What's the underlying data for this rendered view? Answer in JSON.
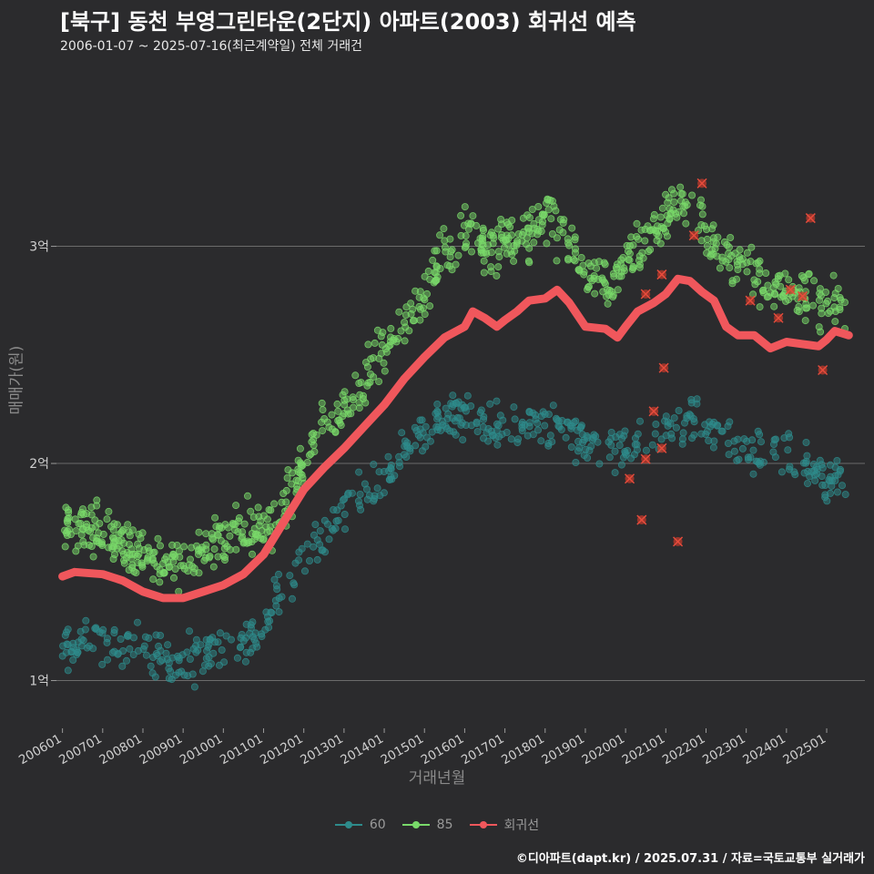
{
  "title": "[북구] 동천 부영그린타운(2단지) 아파트(2003) 회귀선 예측",
  "subtitle": "2006-01-07 ~ 2025-07-16(최근계약일) 전체 거래건",
  "caption": "©디아파트(dapt.kr) / 2025.07.31 / 자료=국토교통부 실거래가",
  "chart_data": {
    "type": "scatter",
    "xlabel": "거래년월",
    "ylabel": "매매가(원)",
    "x_ticks": [
      "200601",
      "200701",
      "200801",
      "200901",
      "201001",
      "201101",
      "201201",
      "201301",
      "201401",
      "201501",
      "201601",
      "201701",
      "201801",
      "201901",
      "202001",
      "202101",
      "202201",
      "202301",
      "202401",
      "202501"
    ],
    "y_ticks": [
      {
        "value": 1.0,
        "label": "1억"
      },
      {
        "value": 2.0,
        "label": "2억"
      },
      {
        "value": 3.0,
        "label": "3억"
      }
    ],
    "xlim": [
      2005.85,
      2025.95
    ],
    "ylim": [
      0.78,
      3.82
    ],
    "grid": true,
    "legend_position": "bottom",
    "colors": {
      "s60": "#2e8b8b",
      "s85": "#79d96a",
      "reg": "#f0575c",
      "outlier": "#c0392b"
    },
    "series": [
      {
        "name": "60",
        "trend": [
          [
            2006.0,
            1.17
          ],
          [
            2007.0,
            1.2
          ],
          [
            2008.0,
            1.17
          ],
          [
            2008.5,
            1.08
          ],
          [
            2009.0,
            1.1
          ],
          [
            2009.5,
            1.12
          ],
          [
            2010.0,
            1.14
          ],
          [
            2010.5,
            1.18
          ],
          [
            2011.0,
            1.27
          ],
          [
            2011.5,
            1.42
          ],
          [
            2012.0,
            1.58
          ],
          [
            2012.5,
            1.68
          ],
          [
            2013.0,
            1.78
          ],
          [
            2013.5,
            1.87
          ],
          [
            2014.0,
            1.96
          ],
          [
            2014.5,
            2.05
          ],
          [
            2015.0,
            2.13
          ],
          [
            2015.5,
            2.22
          ],
          [
            2016.0,
            2.22
          ],
          [
            2016.5,
            2.18
          ],
          [
            2017.0,
            2.16
          ],
          [
            2017.5,
            2.18
          ],
          [
            2018.0,
            2.2
          ],
          [
            2018.5,
            2.18
          ],
          [
            2019.0,
            2.1
          ],
          [
            2019.5,
            2.05
          ],
          [
            2020.0,
            2.08
          ],
          [
            2020.5,
            2.12
          ],
          [
            2021.0,
            2.18
          ],
          [
            2021.5,
            2.22
          ],
          [
            2022.0,
            2.15
          ],
          [
            2022.5,
            2.1
          ],
          [
            2023.0,
            2.05
          ],
          [
            2023.5,
            2.08
          ],
          [
            2024.0,
            2.05
          ],
          [
            2024.5,
            2.0
          ],
          [
            2025.0,
            1.95
          ],
          [
            2025.5,
            1.9
          ]
        ],
        "spread": 0.09
      },
      {
        "name": "85",
        "trend": [
          [
            2006.0,
            1.72
          ],
          [
            2006.5,
            1.7
          ],
          [
            2007.0,
            1.67
          ],
          [
            2007.5,
            1.62
          ],
          [
            2008.0,
            1.58
          ],
          [
            2008.5,
            1.55
          ],
          [
            2009.0,
            1.52
          ],
          [
            2009.5,
            1.58
          ],
          [
            2010.0,
            1.65
          ],
          [
            2010.5,
            1.7
          ],
          [
            2011.0,
            1.7
          ],
          [
            2011.5,
            1.8
          ],
          [
            2012.0,
            2.02
          ],
          [
            2012.5,
            2.18
          ],
          [
            2013.0,
            2.25
          ],
          [
            2013.5,
            2.4
          ],
          [
            2014.0,
            2.55
          ],
          [
            2014.5,
            2.65
          ],
          [
            2015.0,
            2.75
          ],
          [
            2015.5,
            3.0
          ],
          [
            2016.0,
            3.05
          ],
          [
            2016.5,
            3.0
          ],
          [
            2017.0,
            3.02
          ],
          [
            2017.5,
            3.05
          ],
          [
            2018.0,
            3.12
          ],
          [
            2018.5,
            3.05
          ],
          [
            2019.0,
            2.88
          ],
          [
            2019.5,
            2.8
          ],
          [
            2020.0,
            2.92
          ],
          [
            2020.5,
            3.02
          ],
          [
            2021.0,
            3.15
          ],
          [
            2021.5,
            3.22
          ],
          [
            2022.0,
            3.05
          ],
          [
            2022.5,
            2.95
          ],
          [
            2023.0,
            2.9
          ],
          [
            2023.5,
            2.82
          ],
          [
            2024.0,
            2.82
          ],
          [
            2024.5,
            2.78
          ],
          [
            2025.0,
            2.72
          ],
          [
            2025.5,
            2.7
          ]
        ],
        "spread": 0.1
      },
      {
        "name": "회귀선",
        "points": [
          [
            2006.0,
            1.48
          ],
          [
            2006.3,
            1.5
          ],
          [
            2007.0,
            1.49
          ],
          [
            2007.5,
            1.46
          ],
          [
            2008.0,
            1.41
          ],
          [
            2008.5,
            1.38
          ],
          [
            2009.0,
            1.38
          ],
          [
            2009.5,
            1.41
          ],
          [
            2010.0,
            1.44
          ],
          [
            2010.5,
            1.49
          ],
          [
            2011.0,
            1.58
          ],
          [
            2011.5,
            1.73
          ],
          [
            2012.0,
            1.88
          ],
          [
            2012.5,
            1.98
          ],
          [
            2013.0,
            2.07
          ],
          [
            2013.5,
            2.17
          ],
          [
            2014.0,
            2.27
          ],
          [
            2014.5,
            2.39
          ],
          [
            2015.0,
            2.49
          ],
          [
            2015.5,
            2.58
          ],
          [
            2016.0,
            2.63
          ],
          [
            2016.2,
            2.7
          ],
          [
            2016.5,
            2.67
          ],
          [
            2016.8,
            2.63
          ],
          [
            2017.0,
            2.66
          ],
          [
            2017.3,
            2.7
          ],
          [
            2017.6,
            2.75
          ],
          [
            2018.0,
            2.76
          ],
          [
            2018.3,
            2.8
          ],
          [
            2018.6,
            2.74
          ],
          [
            2019.0,
            2.63
          ],
          [
            2019.5,
            2.62
          ],
          [
            2019.8,
            2.58
          ],
          [
            2020.0,
            2.63
          ],
          [
            2020.3,
            2.7
          ],
          [
            2020.7,
            2.74
          ],
          [
            2021.0,
            2.78
          ],
          [
            2021.3,
            2.85
          ],
          [
            2021.6,
            2.84
          ],
          [
            2021.9,
            2.79
          ],
          [
            2022.2,
            2.75
          ],
          [
            2022.5,
            2.63
          ],
          [
            2022.8,
            2.59
          ],
          [
            2023.2,
            2.59
          ],
          [
            2023.6,
            2.53
          ],
          [
            2024.0,
            2.56
          ],
          [
            2024.4,
            2.55
          ],
          [
            2024.8,
            2.54
          ],
          [
            2025.0,
            2.57
          ],
          [
            2025.2,
            2.61
          ],
          [
            2025.55,
            2.59
          ]
        ]
      }
    ],
    "outliers": [
      [
        2020.1,
        1.93
      ],
      [
        2020.4,
        1.74
      ],
      [
        2020.5,
        2.02
      ],
      [
        2020.7,
        2.24
      ],
      [
        2020.9,
        2.07
      ],
      [
        2020.95,
        2.44
      ],
      [
        2021.3,
        1.64
      ],
      [
        2021.7,
        3.05
      ],
      [
        2021.9,
        3.29
      ],
      [
        2020.5,
        2.78
      ],
      [
        2020.9,
        2.87
      ],
      [
        2023.1,
        2.75
      ],
      [
        2023.8,
        2.67
      ],
      [
        2024.1,
        2.8
      ],
      [
        2024.4,
        2.77
      ],
      [
        2024.6,
        3.13
      ],
      [
        2024.9,
        2.43
      ]
    ]
  }
}
